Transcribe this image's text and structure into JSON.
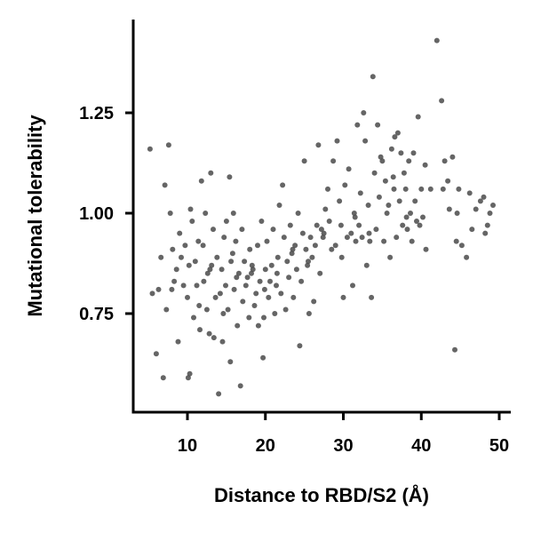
{
  "chart_data": {
    "type": "scatter",
    "title": "",
    "xlabel": "Distance to RBD/S2 (Å)",
    "ylabel": "Mutational tolerability",
    "xlim": [
      3,
      51
    ],
    "ylim": [
      0.52,
      1.46
    ],
    "xticks": [
      10,
      20,
      30,
      40,
      50
    ],
    "xtick_labels": [
      "10",
      "20",
      "30",
      "40",
      "50"
    ],
    "yticks": [
      0.75,
      1.0,
      1.25
    ],
    "ytick_labels": [
      "0.75",
      "1.00",
      "1.25"
    ],
    "grid": false,
    "legend": "none",
    "point_color": "#4a4a4a",
    "points": [
      [
        5.2,
        1.16
      ],
      [
        5.5,
        0.8
      ],
      [
        6,
        0.65
      ],
      [
        6.3,
        0.81
      ],
      [
        6.6,
        0.89
      ],
      [
        6.9,
        0.59
      ],
      [
        7.1,
        1.07
      ],
      [
        7.3,
        0.76
      ],
      [
        7.6,
        1.17
      ],
      [
        7.8,
        1.0
      ],
      [
        8.1,
        0.91
      ],
      [
        8.3,
        0.83
      ],
      [
        8.6,
        0.86
      ],
      [
        8.8,
        0.68
      ],
      [
        9.0,
        0.95
      ],
      [
        9.2,
        0.89
      ],
      [
        9.5,
        0.82
      ],
      [
        9.7,
        0.92
      ],
      [
        10.0,
        0.79
      ],
      [
        10.1,
        0.59
      ],
      [
        10.3,
        0.6
      ],
      [
        10.4,
        1.01
      ],
      [
        10.6,
        0.98
      ],
      [
        10.8,
        0.74
      ],
      [
        11.0,
        0.88
      ],
      [
        11.2,
        0.82
      ],
      [
        11.4,
        0.93
      ],
      [
        11.6,
        0.71
      ],
      [
        11.8,
        1.08
      ],
      [
        12.0,
        0.92
      ],
      [
        12.1,
        0.83
      ],
      [
        12.3,
        1.0
      ],
      [
        12.5,
        0.76
      ],
      [
        12.6,
        0.85
      ],
      [
        12.8,
        0.7
      ],
      [
        13.0,
        1.1
      ],
      [
        13.1,
        0.87
      ],
      [
        13.3,
        0.96
      ],
      [
        13.4,
        0.69
      ],
      [
        13.6,
        0.79
      ],
      [
        13.8,
        0.89
      ],
      [
        14.0,
        0.55
      ],
      [
        14.2,
        0.8
      ],
      [
        14.4,
        0.86
      ],
      [
        14.6,
        0.75
      ],
      [
        14.7,
        0.94
      ],
      [
        14.9,
        0.82
      ],
      [
        15.0,
        0.98
      ],
      [
        15.2,
        0.76
      ],
      [
        15.4,
        1.09
      ],
      [
        15.5,
        0.63
      ],
      [
        15.6,
        0.88
      ],
      [
        15.8,
        0.9
      ],
      [
        15.9,
        1.0
      ],
      [
        16.0,
        0.81
      ],
      [
        16.2,
        0.93
      ],
      [
        16.4,
        0.72
      ],
      [
        16.6,
        0.85
      ],
      [
        16.8,
        0.57
      ],
      [
        17.0,
        0.96
      ],
      [
        17.1,
        0.78
      ],
      [
        17.3,
        0.88
      ],
      [
        17.5,
        0.82
      ],
      [
        17.7,
        0.84
      ],
      [
        17.9,
        0.74
      ],
      [
        18.0,
        0.91
      ],
      [
        18.2,
        0.85
      ],
      [
        18.4,
        0.86
      ],
      [
        18.6,
        0.77
      ],
      [
        18.8,
        0.8
      ],
      [
        19.0,
        0.92
      ],
      [
        19.1,
        0.72
      ],
      [
        19.3,
        0.83
      ],
      [
        19.5,
        0.98
      ],
      [
        19.7,
        0.64
      ],
      [
        19.8,
        0.74
      ],
      [
        20.0,
        0.86
      ],
      [
        20.2,
        0.93
      ],
      [
        20.4,
        0.79
      ],
      [
        20.6,
        0.83
      ],
      [
        20.8,
        0.87
      ],
      [
        21.0,
        0.96
      ],
      [
        21.2,
        0.75
      ],
      [
        21.4,
        0.82
      ],
      [
        21.6,
        0.89
      ],
      [
        21.8,
        1.02
      ],
      [
        22.0,
        0.8
      ],
      [
        22.2,
        1.07
      ],
      [
        22.4,
        0.94
      ],
      [
        22.6,
        0.76
      ],
      [
        22.8,
        0.88
      ],
      [
        23.0,
        0.84
      ],
      [
        23.2,
        0.97
      ],
      [
        23.4,
        0.9
      ],
      [
        23.6,
        0.79
      ],
      [
        23.8,
        0.92
      ],
      [
        24.0,
        0.86
      ],
      [
        24.2,
        1.0
      ],
      [
        24.4,
        0.67
      ],
      [
        24.6,
        0.83
      ],
      [
        24.8,
        0.95
      ],
      [
        25.0,
        1.13
      ],
      [
        25.2,
        0.91
      ],
      [
        25.4,
        0.87
      ],
      [
        25.6,
        0.75
      ],
      [
        25.8,
        0.94
      ],
      [
        26.0,
        0.89
      ],
      [
        26.2,
        0.78
      ],
      [
        26.4,
        0.92
      ],
      [
        26.6,
        0.97
      ],
      [
        26.8,
        1.17
      ],
      [
        27.0,
        0.85
      ],
      [
        27.2,
        0.96
      ],
      [
        27.4,
        0.94
      ],
      [
        27.7,
        1.01
      ],
      [
        28.0,
        1.06
      ],
      [
        28.2,
        0.98
      ],
      [
        28.5,
        0.91
      ],
      [
        28.7,
        1.13
      ],
      [
        29.0,
        0.92
      ],
      [
        29.2,
        1.18
      ],
      [
        29.5,
        1.03
      ],
      [
        29.7,
        0.97
      ],
      [
        30.0,
        0.79
      ],
      [
        30.2,
        1.07
      ],
      [
        30.5,
        0.94
      ],
      [
        30.7,
        1.11
      ],
      [
        31.0,
        0.95
      ],
      [
        31.2,
        0.82
      ],
      [
        31.4,
        1.0
      ],
      [
        31.6,
        0.93
      ],
      [
        31.8,
        1.22
      ],
      [
        32.0,
        0.97
      ],
      [
        32.2,
        1.05
      ],
      [
        32.4,
        0.94
      ],
      [
        32.6,
        1.25
      ],
      [
        32.8,
        1.18
      ],
      [
        33.0,
        0.87
      ],
      [
        33.2,
        1.02
      ],
      [
        33.4,
        0.93
      ],
      [
        33.6,
        0.79
      ],
      [
        33.8,
        1.34
      ],
      [
        34.0,
        1.1
      ],
      [
        34.2,
        0.96
      ],
      [
        34.4,
        1.22
      ],
      [
        34.6,
        1.04
      ],
      [
        34.8,
        1.14
      ],
      [
        35.0,
        1.13
      ],
      [
        35.2,
        0.93
      ],
      [
        35.4,
        1.08
      ],
      [
        35.6,
        1.0
      ],
      [
        35.8,
        1.02
      ],
      [
        36.0,
        0.89
      ],
      [
        36.2,
        1.16
      ],
      [
        36.4,
        1.09
      ],
      [
        36.6,
        1.19
      ],
      [
        36.8,
        0.94
      ],
      [
        37.0,
        1.2
      ],
      [
        37.2,
        1.03
      ],
      [
        37.4,
        1.15
      ],
      [
        37.6,
        0.97
      ],
      [
        37.8,
        1.1
      ],
      [
        38.0,
        1.06
      ],
      [
        38.2,
        0.96
      ],
      [
        38.4,
        1.13
      ],
      [
        38.6,
        1.0
      ],
      [
        38.8,
        0.93
      ],
      [
        39.0,
        1.15
      ],
      [
        39.2,
        1.03
      ],
      [
        39.4,
        0.98
      ],
      [
        39.6,
        1.24
      ],
      [
        39.8,
        0.97
      ],
      [
        40.0,
        1.06
      ],
      [
        40.2,
        0.99
      ],
      [
        40.6,
        0.91
      ],
      [
        41.2,
        1.06
      ],
      [
        42.0,
        1.43
      ],
      [
        42.6,
        1.28
      ],
      [
        43.0,
        1.13
      ],
      [
        43.4,
        1.08
      ],
      [
        43.6,
        1.01
      ],
      [
        44.0,
        1.14
      ],
      [
        44.3,
        0.66
      ],
      [
        44.5,
        0.93
      ],
      [
        44.8,
        1.06
      ],
      [
        45.2,
        0.92
      ],
      [
        45.8,
        0.89
      ],
      [
        46.2,
        1.05
      ],
      [
        47.0,
        1.01
      ],
      [
        47.6,
        1.03
      ],
      [
        48.2,
        0.95
      ],
      [
        48.5,
        0.97
      ],
      [
        48.8,
        1.0
      ],
      [
        49.2,
        1.02
      ],
      [
        8.0,
        0.81
      ],
      [
        10.2,
        0.87
      ],
      [
        11.5,
        0.77
      ],
      [
        12.9,
        0.86
      ],
      [
        14.5,
        0.68
      ],
      [
        16.3,
        0.84
      ],
      [
        18.3,
        0.87
      ],
      [
        19.9,
        0.81
      ],
      [
        21.5,
        0.85
      ],
      [
        23.5,
        0.91
      ],
      [
        25.5,
        0.88
      ],
      [
        27.5,
        0.95
      ],
      [
        29.8,
        0.89
      ],
      [
        31.5,
        0.99
      ],
      [
        33.3,
        0.95
      ],
      [
        36.5,
        1.06
      ],
      [
        38.1,
        0.99
      ],
      [
        40.5,
        1.12
      ],
      [
        42.8,
        1.06
      ],
      [
        44.6,
        1.0
      ],
      [
        46.5,
        0.96
      ],
      [
        48.0,
        1.04
      ]
    ]
  }
}
